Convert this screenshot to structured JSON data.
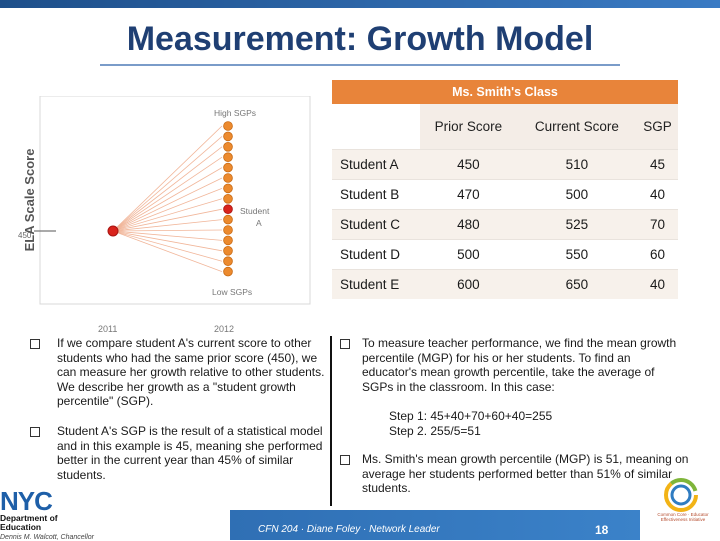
{
  "title": "Measurement: Growth Model",
  "chart": {
    "y_axis_label": "ELA Scale Score",
    "high_label": "High SGPs",
    "low_label": "Low SGPs",
    "student_label_line1": "Student",
    "student_label_line2": "A",
    "y_tick": "450",
    "x_ticks": [
      "2011",
      "2012"
    ],
    "dot_color": "#ec8a2e",
    "student_color": "#d9231c"
  },
  "table": {
    "caption": "Ms. Smith's Class",
    "headers": [
      "",
      "Prior Score",
      "Current Score",
      "SGP"
    ],
    "rows": [
      {
        "name": "Student A",
        "prior": "450",
        "current": "510",
        "sgp": "45"
      },
      {
        "name": "Student B",
        "prior": "470",
        "current": "500",
        "sgp": "40"
      },
      {
        "name": "Student C",
        "prior": "480",
        "current": "525",
        "sgp": "70"
      },
      {
        "name": "Student D",
        "prior": "500",
        "current": "550",
        "sgp": "60"
      },
      {
        "name": "Student E",
        "prior": "600",
        "current": "650",
        "sgp": "40"
      }
    ]
  },
  "left_bullets": [
    "If we compare student A's current score to other students who had the same prior score (450), we can measure her growth relative to other students. We describe her growth as a \"student growth percentile\" (SGP).",
    "Student A's SGP is the result of a statistical model and in this example is 45, meaning she performed better in the current year than 45% of similar students."
  ],
  "right_bullets": [
    "To measure teacher performance, we find the mean growth percentile (MGP) for his or her students. To find an educator's mean growth percentile, take the average of SGPs in the classroom. In this case:",
    "Ms. Smith's mean growth percentile (MGP) is 51, meaning on average her students performed better than 51% of similar students."
  ],
  "steps": [
    "Step 1: 45+40+70+60+40=255",
    "Step 2. 255/5=51"
  ],
  "footer": {
    "text": "CFN 204 · Diane Foley · Network Leader",
    "page": "18"
  },
  "logo": {
    "nyc": "NYC",
    "doe_line1": "Department of",
    "doe_line2": "Education",
    "chancellor": "Dennis M. Walcott, Chancellor",
    "cz_text": "Common Core · Educator Effectiveness Initiative"
  }
}
